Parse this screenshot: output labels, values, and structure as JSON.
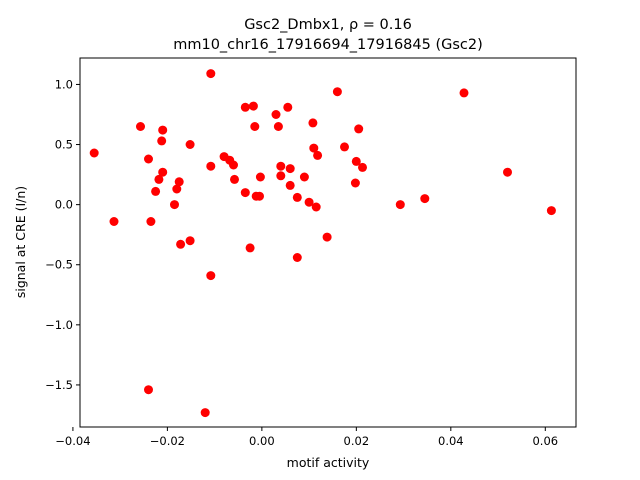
{
  "chart_data": {
    "type": "scatter",
    "title_line1": "Gsc2_Dmbx1, ρ = 0.16",
    "title_line2": "mm10_chr16_17916694_17916845 (Gsc2)",
    "xlabel": "motif activity",
    "ylabel": "signal at CRE (I/n)",
    "xlim": [
      -0.0385,
      0.0665
    ],
    "ylim": [
      -1.85,
      1.22
    ],
    "xticks": [
      -0.04,
      -0.02,
      0.0,
      0.02,
      0.04,
      0.06
    ],
    "xtick_labels": [
      "−0.04",
      "−0.02",
      "0.00",
      "0.02",
      "0.04",
      "0.06"
    ],
    "yticks": [
      -1.5,
      -1.0,
      -0.5,
      0.0,
      0.5,
      1.0
    ],
    "ytick_labels": [
      "−1.5",
      "−1.0",
      "−0.5",
      "0.0",
      "0.5",
      "1.0"
    ],
    "marker_color": "#ff0000",
    "grid": false,
    "points": [
      [
        -0.0355,
        0.43
      ],
      [
        -0.0313,
        -0.14
      ],
      [
        -0.0257,
        0.65
      ],
      [
        -0.024,
        0.38
      ],
      [
        -0.0235,
        -0.14
      ],
      [
        -0.024,
        -1.54
      ],
      [
        -0.0225,
        0.11
      ],
      [
        -0.0218,
        0.21
      ],
      [
        -0.0212,
        0.53
      ],
      [
        -0.021,
        0.62
      ],
      [
        -0.021,
        0.27
      ],
      [
        -0.0185,
        0.0
      ],
      [
        -0.018,
        0.13
      ],
      [
        -0.0175,
        0.19
      ],
      [
        -0.0172,
        -0.33
      ],
      [
        -0.0152,
        0.5
      ],
      [
        -0.0152,
        -0.3
      ],
      [
        -0.012,
        -1.73
      ],
      [
        -0.0108,
        1.09
      ],
      [
        -0.0108,
        0.32
      ],
      [
        -0.0108,
        -0.59
      ],
      [
        -0.008,
        0.4
      ],
      [
        -0.0068,
        0.37
      ],
      [
        -0.006,
        0.33
      ],
      [
        -0.0058,
        0.21
      ],
      [
        -0.0035,
        0.81
      ],
      [
        -0.0035,
        0.1
      ],
      [
        -0.0025,
        -0.36
      ],
      [
        -0.0018,
        0.82
      ],
      [
        -0.0015,
        0.65
      ],
      [
        -0.0012,
        0.07
      ],
      [
        -0.0005,
        0.07
      ],
      [
        -0.0003,
        0.23
      ],
      [
        0.003,
        0.75
      ],
      [
        0.0035,
        0.65
      ],
      [
        0.004,
        0.32
      ],
      [
        0.004,
        0.24
      ],
      [
        0.0055,
        0.81
      ],
      [
        0.006,
        0.3
      ],
      [
        0.006,
        0.16
      ],
      [
        0.0075,
        0.06
      ],
      [
        0.0075,
        -0.44
      ],
      [
        0.009,
        0.23
      ],
      [
        0.01,
        0.02
      ],
      [
        0.0108,
        0.68
      ],
      [
        0.011,
        0.47
      ],
      [
        0.0115,
        -0.02
      ],
      [
        0.0118,
        0.41
      ],
      [
        0.0138,
        -0.27
      ],
      [
        0.016,
        0.94
      ],
      [
        0.0175,
        0.48
      ],
      [
        0.0198,
        0.18
      ],
      [
        0.02,
        0.36
      ],
      [
        0.0205,
        0.63
      ],
      [
        0.0213,
        0.31
      ],
      [
        0.0293,
        0.0
      ],
      [
        0.0345,
        0.05
      ],
      [
        0.0428,
        0.93
      ],
      [
        0.052,
        0.27
      ],
      [
        0.0613,
        -0.05
      ]
    ]
  }
}
